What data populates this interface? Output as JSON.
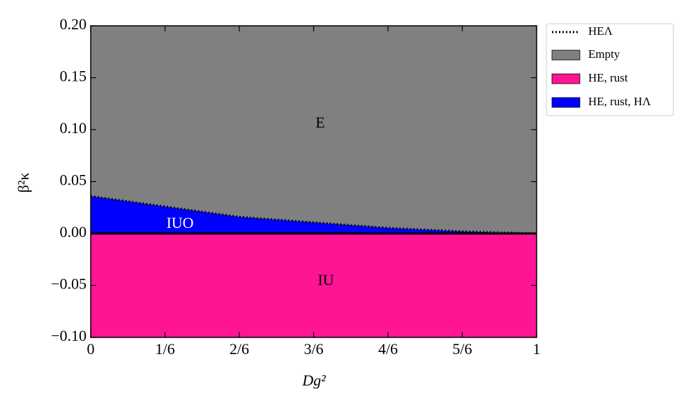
{
  "chart_data": {
    "type": "phase",
    "x_label": "Dg²",
    "y_label": "β²κ",
    "x": [
      0,
      0.1667,
      0.3333,
      0.5,
      0.6667,
      0.8333,
      1
    ],
    "series": [
      {
        "name": "HEΛ",
        "color": "#000000",
        "values": [
          0.036,
          0.026,
          0.016,
          0.0107,
          0.0054,
          0.002,
          0
        ]
      }
    ],
    "regions": [
      {
        "name": "Empty",
        "color": "#808080"
      },
      {
        "name": "HE, rust",
        "color": "#ff1493"
      },
      {
        "name": "HE, rust, HΛ",
        "color": "#0000ff"
      }
    ],
    "annotations": [
      "E",
      "IUO",
      "IU"
    ],
    "xlim": [
      0,
      1
    ],
    "ylim": [
      -0.1,
      0.2
    ],
    "xticks": [
      0,
      {
        "value": 0.1667,
        "label": "1/6"
      },
      {
        "value": 0.3333,
        "label": "2/6"
      },
      {
        "value": 0.5,
        "label": "3/6"
      },
      {
        "value": 0.6667,
        "label": "4/6"
      },
      {
        "value": 0.8333,
        "label": "5/6"
      },
      1
    ],
    "yticks": [
      {
        "value": -0.1,
        "label": "−0.10"
      },
      {
        "value": -0.05,
        "label": "−0.05"
      },
      {
        "value": 0,
        "label": "0.00"
      },
      {
        "value": 0.05,
        "label": "0.05"
      },
      {
        "value": 0.1,
        "label": "0.10"
      },
      {
        "value": 0.15,
        "label": "0.15"
      },
      {
        "value": 0.2,
        "label": "0.20"
      }
    ],
    "legend": "upper right outside"
  }
}
